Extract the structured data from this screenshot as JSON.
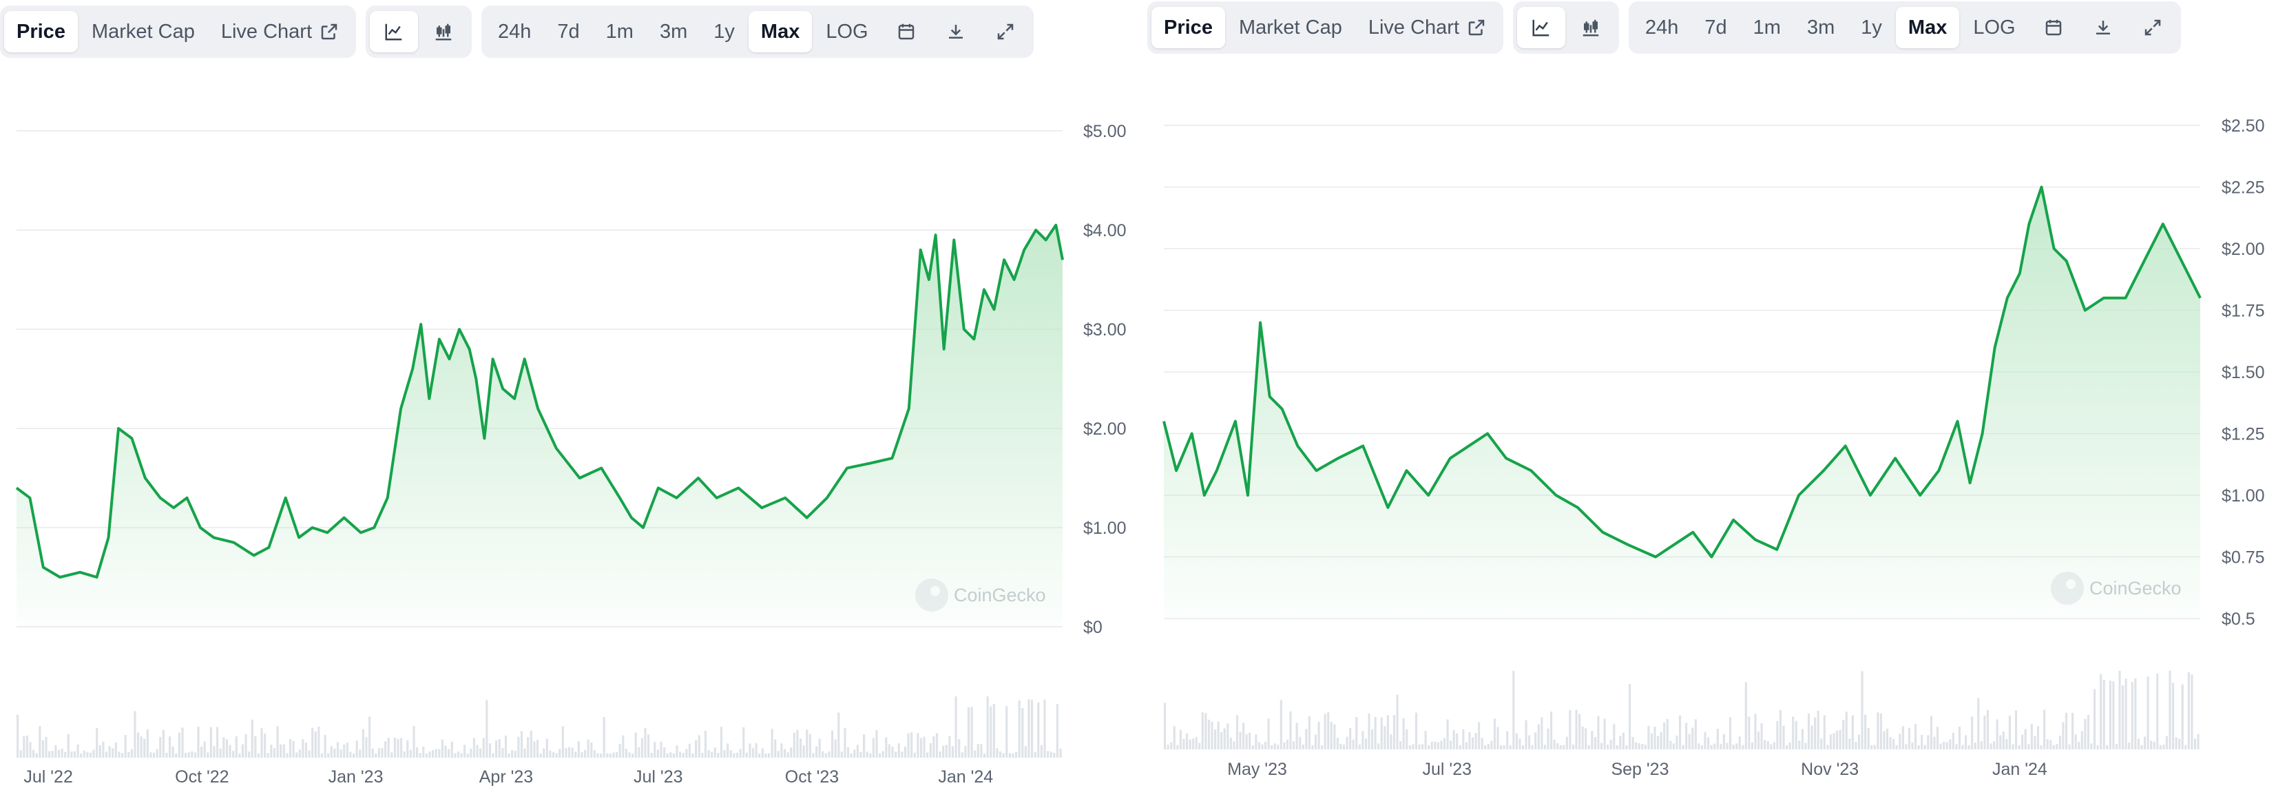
{
  "colors": {
    "line": "#16a34a",
    "grid": "#e7e9ec",
    "volume": "#dfe3e8",
    "fill_top": "#bfe8c9"
  },
  "toolbar": {
    "view_tabs": [
      "Price",
      "Market Cap",
      "Live Chart"
    ],
    "active_view": "Price",
    "chart_type_icons": [
      "line-chart-icon",
      "candlestick-chart-icon"
    ],
    "ranges": [
      "24h",
      "7d",
      "1m",
      "3m",
      "1y",
      "Max",
      "LOG"
    ],
    "active_range": "Max",
    "action_icons": [
      "calendar-icon",
      "download-icon",
      "expand-icon"
    ]
  },
  "watermark": {
    "brand": "CoinGecko",
    "logo_icon": "coingecko-gecko-icon",
    "background_logo": "blockbeats-logo"
  },
  "chart_data": [
    {
      "type": "area",
      "x_tick_labels": [
        "Jul '22",
        "Oct '22",
        "Jan '23",
        "Apr '23",
        "Jul '23",
        "Oct '23",
        "Jan '24"
      ],
      "y_tick_labels": [
        "$0",
        "$1.00",
        "$2.00",
        "$3.00",
        "$4.00",
        "$5.00"
      ],
      "ylim": [
        0,
        5
      ],
      "xlim": [
        "2022-06-12",
        "2024-02-28"
      ],
      "grid": true,
      "series": [
        {
          "x": [
            "2022-06-12",
            "2022-06-20",
            "2022-06-28",
            "2022-07-08",
            "2022-07-20",
            "2022-07-30",
            "2022-08-06",
            "2022-08-12",
            "2022-08-20",
            "2022-08-28",
            "2022-09-06",
            "2022-09-14",
            "2022-09-22",
            "2022-09-30",
            "2022-10-08",
            "2022-10-20",
            "2022-11-01",
            "2022-11-10",
            "2022-11-20",
            "2022-11-28",
            "2022-12-06",
            "2022-12-15",
            "2022-12-25",
            "2023-01-04",
            "2023-01-12",
            "2023-01-20",
            "2023-01-28",
            "2023-02-04",
            "2023-02-09",
            "2023-02-14",
            "2023-02-20",
            "2023-02-26",
            "2023-03-04",
            "2023-03-10",
            "2023-03-14",
            "2023-03-19",
            "2023-03-24",
            "2023-03-30",
            "2023-04-06",
            "2023-04-12",
            "2023-04-20",
            "2023-05-01",
            "2023-05-15",
            "2023-05-28",
            "2023-06-08",
            "2023-06-15",
            "2023-06-22",
            "2023-07-01",
            "2023-07-12",
            "2023-07-25",
            "2023-08-05",
            "2023-08-18",
            "2023-09-01",
            "2023-09-15",
            "2023-09-28",
            "2023-10-10",
            "2023-10-22",
            "2023-11-05",
            "2023-11-18",
            "2023-11-28",
            "2023-12-05",
            "2023-12-10",
            "2023-12-14",
            "2023-12-19",
            "2023-12-25",
            "2023-12-31",
            "2024-01-06",
            "2024-01-12",
            "2024-01-18",
            "2024-01-24",
            "2024-01-30",
            "2024-02-05",
            "2024-02-12",
            "2024-02-18",
            "2024-02-24",
            "2024-02-28"
          ],
          "y": [
            1.4,
            1.3,
            0.6,
            0.5,
            0.55,
            0.5,
            0.9,
            2.0,
            1.9,
            1.5,
            1.3,
            1.2,
            1.3,
            1.0,
            0.9,
            0.85,
            0.72,
            0.8,
            1.3,
            0.9,
            1.0,
            0.95,
            1.1,
            0.95,
            1.0,
            1.3,
            2.2,
            2.6,
            3.05,
            2.3,
            2.9,
            2.7,
            3.0,
            2.8,
            2.5,
            1.9,
            2.7,
            2.4,
            2.3,
            2.7,
            2.2,
            1.8,
            1.5,
            1.6,
            1.3,
            1.1,
            1.0,
            1.4,
            1.3,
            1.5,
            1.3,
            1.4,
            1.2,
            1.3,
            1.1,
            1.3,
            1.6,
            1.65,
            1.7,
            2.2,
            3.8,
            3.5,
            3.95,
            2.8,
            3.9,
            3.0,
            2.9,
            3.4,
            3.2,
            3.7,
            3.5,
            3.8,
            4.0,
            3.9,
            4.05,
            3.7
          ]
        }
      ]
    },
    {
      "type": "area",
      "x_tick_labels": [
        "May '23",
        "Jul '23",
        "Sep '23",
        "Nov '23",
        "Jan '24"
      ],
      "y_tick_labels": [
        "$0.5",
        "$0.75",
        "$1.00",
        "$1.25",
        "$1.50",
        "$1.75",
        "$2.00",
        "$2.25",
        "$2.50"
      ],
      "ylim": [
        0.5,
        2.5
      ],
      "xlim": [
        "2023-04-01",
        "2024-02-28"
      ],
      "grid": true,
      "series": [
        {
          "x": [
            "2023-04-01",
            "2023-04-05",
            "2023-04-10",
            "2023-04-14",
            "2023-04-18",
            "2023-04-24",
            "2023-04-28",
            "2023-05-02",
            "2023-05-05",
            "2023-05-09",
            "2023-05-14",
            "2023-05-20",
            "2023-05-27",
            "2023-06-04",
            "2023-06-12",
            "2023-06-18",
            "2023-06-25",
            "2023-07-02",
            "2023-07-08",
            "2023-07-14",
            "2023-07-20",
            "2023-07-28",
            "2023-08-05",
            "2023-08-12",
            "2023-08-20",
            "2023-08-28",
            "2023-09-06",
            "2023-09-12",
            "2023-09-18",
            "2023-09-24",
            "2023-10-01",
            "2023-10-08",
            "2023-10-15",
            "2023-10-22",
            "2023-10-30",
            "2023-11-06",
            "2023-11-14",
            "2023-11-22",
            "2023-11-30",
            "2023-12-06",
            "2023-12-12",
            "2023-12-16",
            "2023-12-20",
            "2023-12-24",
            "2023-12-28",
            "2024-01-01",
            "2024-01-04",
            "2024-01-08",
            "2024-01-12",
            "2024-01-16",
            "2024-01-22",
            "2024-01-28",
            "2024-02-04",
            "2024-02-10",
            "2024-02-16",
            "2024-02-22",
            "2024-02-28"
          ],
          "y": [
            1.3,
            1.1,
            1.25,
            1.0,
            1.1,
            1.3,
            1.0,
            1.7,
            1.4,
            1.35,
            1.2,
            1.1,
            1.15,
            1.2,
            0.95,
            1.1,
            1.0,
            1.15,
            1.2,
            1.25,
            1.15,
            1.1,
            1.0,
            0.95,
            0.85,
            0.8,
            0.75,
            0.8,
            0.85,
            0.75,
            0.9,
            0.82,
            0.78,
            1.0,
            1.1,
            1.2,
            1.0,
            1.15,
            1.0,
            1.1,
            1.3,
            1.05,
            1.25,
            1.6,
            1.8,
            1.9,
            2.1,
            2.25,
            2.0,
            1.95,
            1.75,
            1.8,
            1.8,
            1.95,
            2.1,
            1.95,
            1.8
          ]
        }
      ]
    }
  ]
}
